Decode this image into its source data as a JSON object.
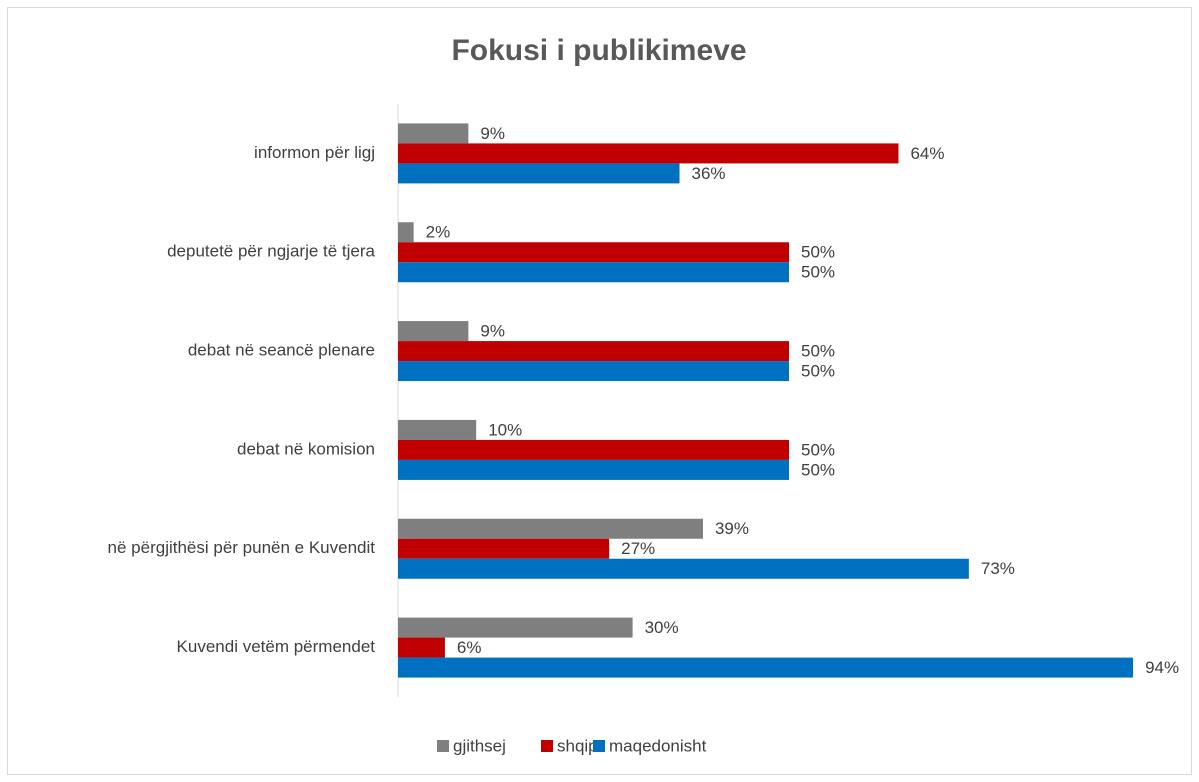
{
  "chart_data": {
    "type": "hbar",
    "title": "Fokusi i publikimeve",
    "categories": [
      "informon për ligj",
      "deputetë për ngjarje të tjera",
      "debat në seancë plenare",
      "debat në komision",
      "në përgjithësi për punën e Kuvendit",
      "Kuvendi vetëm përmendet"
    ],
    "series": [
      {
        "name": "gjithsej",
        "color": "#7f7f7f",
        "values": [
          9,
          2,
          9,
          10,
          39,
          30
        ],
        "value_labels": [
          "9%",
          "2%",
          "9%",
          "10%",
          "39%",
          "30%"
        ]
      },
      {
        "name": "shqip",
        "color": "#c00000",
        "values": [
          64,
          50,
          50,
          50,
          27,
          6
        ],
        "value_labels": [
          "64%",
          "50%",
          "50%",
          "50%",
          "27%",
          "6%"
        ]
      },
      {
        "name": "maqedonisht",
        "color": "#0070c0",
        "values": [
          36,
          50,
          50,
          50,
          73,
          94
        ],
        "value_labels": [
          "36%",
          "50%",
          "50%",
          "50%",
          "73%",
          "94%"
        ]
      }
    ],
    "xlim": [
      0,
      100
    ]
  }
}
